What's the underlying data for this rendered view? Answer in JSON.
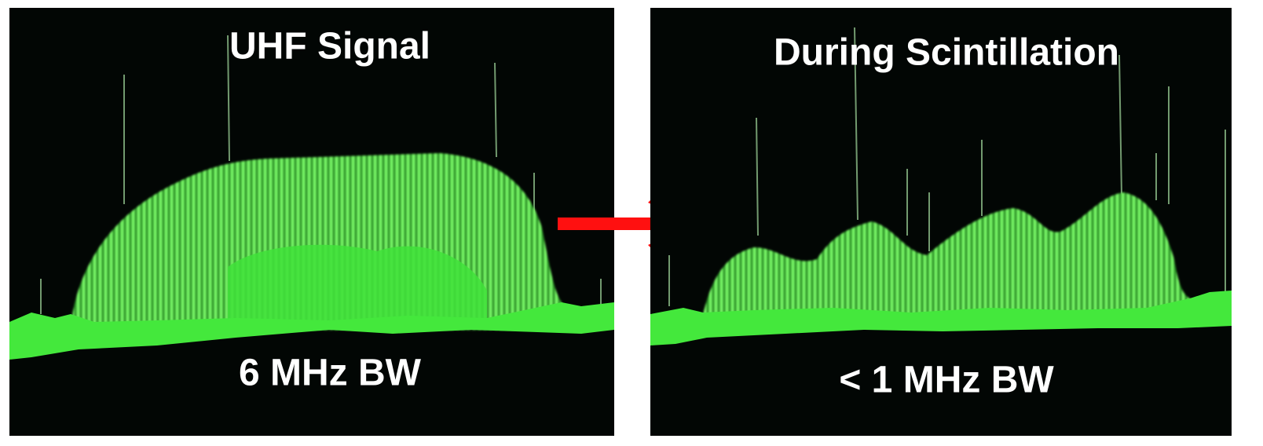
{
  "left_panel": {
    "title": "UHF Signal",
    "caption": "6 MHz BW"
  },
  "right_panel": {
    "title": "During Scintillation",
    "caption": "< 1 MHz BW"
  }
}
